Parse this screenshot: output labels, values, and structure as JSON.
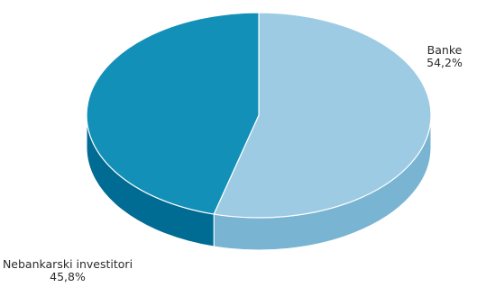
{
  "chart_data": {
    "type": "pie",
    "style": "3d",
    "slices": [
      {
        "label": "Banke",
        "value": 54.2,
        "value_text": "54,2%",
        "color": "#9dcbe3",
        "side_color": "#79b4d2"
      },
      {
        "label": "Nebankarski investitori",
        "value": 45.8,
        "value_text": "45,8%",
        "color": "#1390b8",
        "side_color": "#006c93"
      }
    ],
    "legend": "none"
  }
}
